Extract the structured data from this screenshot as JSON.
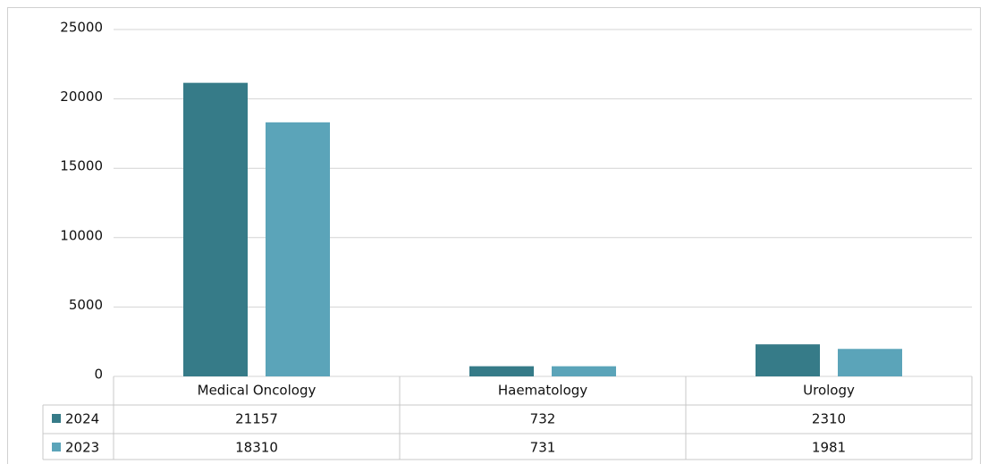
{
  "chart_data": {
    "type": "bar",
    "categories": [
      "Medical Oncology",
      "Haematology",
      "Urology"
    ],
    "series": [
      {
        "name": "2024",
        "color": "#367b88",
        "values": [
          21157,
          732,
          2310
        ]
      },
      {
        "name": "2023",
        "color": "#5ba4b9",
        "values": [
          18310,
          731,
          1981
        ]
      }
    ],
    "ylim": [
      0,
      25000
    ],
    "yticks": [
      0,
      5000,
      10000,
      15000,
      20000,
      25000
    ],
    "grid": true,
    "data_table": true
  }
}
